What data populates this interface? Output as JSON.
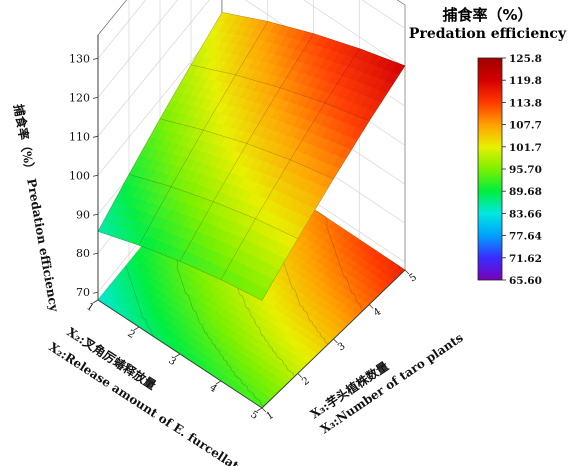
{
  "chart_data": {
    "type": "surface3d",
    "legend": {
      "title_cn": "捕食率（%）",
      "title_en": "Predation efficiency",
      "colorbar_ticks": [
        "125.8",
        "119.8",
        "113.8",
        "107.7",
        "101.7",
        "95.70",
        "89.68",
        "83.66",
        "77.64",
        "71.62",
        "65.60"
      ],
      "range": [
        65.6,
        125.8
      ],
      "colors": [
        "#7a00b8",
        "#3a2cff",
        "#00a0ff",
        "#00e8e0",
        "#00ee40",
        "#7cf000",
        "#e8f000",
        "#ffa000",
        "#ff3a00",
        "#d40000",
        "#a00000"
      ]
    },
    "zaxis": {
      "label_cn": "捕食率（%）",
      "label_en": "Predation efficiency",
      "ticks": [
        70,
        80,
        90,
        100,
        110,
        120,
        130
      ],
      "range": [
        68,
        136
      ]
    },
    "xaxis": {
      "label_cn": "X₂:叉角厉蝽释放量",
      "label_en": "X₂:Release amount of E. furcellata",
      "ticks": [
        1,
        2,
        3,
        4,
        5
      ]
    },
    "yaxis": {
      "label_cn": "X₃:芋头植株数量",
      "label_en": "X₃:Number of taro plants",
      "ticks": [
        1,
        2,
        3,
        4,
        5
      ]
    },
    "surface": {
      "x": [
        1,
        2,
        3,
        4,
        5
      ],
      "y": [
        1,
        2,
        3,
        4,
        5
      ],
      "z": [
        [
          85.6,
          90.5,
          95.0,
          99.1,
          102.8
        ],
        [
          89.0,
          94.5,
          99.5,
          104.1,
          108.3
        ],
        [
          91.8,
          97.8,
          103.4,
          108.4,
          113.0
        ],
        [
          94.0,
          100.6,
          106.6,
          112.1,
          117.0
        ],
        [
          95.6,
          102.6,
          109.1,
          115.1,
          120.4
        ]
      ]
    },
    "floor_contour": true,
    "grid": true
  }
}
